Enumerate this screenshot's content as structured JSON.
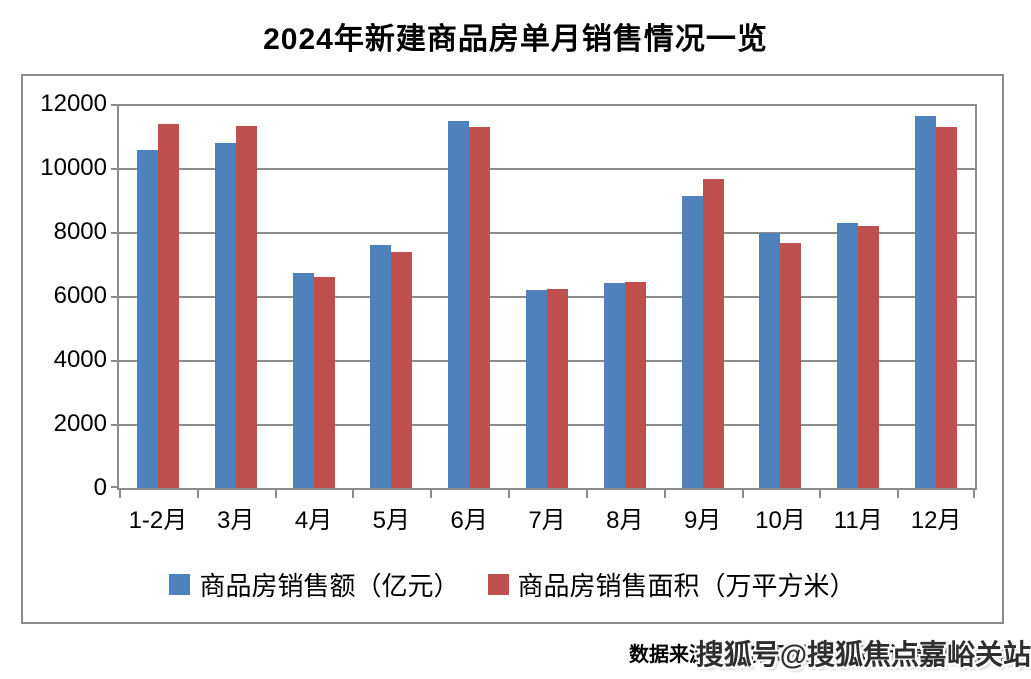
{
  "title": "2024年新建商品房单月销售情况一览",
  "footer": {
    "source": "数据来源：中房网根据国家统计局数据整理",
    "watermark": "搜狐号@搜狐焦点嘉峪关站"
  },
  "chart_data": {
    "type": "bar",
    "title": "2024年新建商品房单月销售情况一览",
    "categories": [
      "1-2月",
      "3月",
      "4月",
      "5月",
      "6月",
      "7月",
      "8月",
      "9月",
      "10月",
      "11月",
      "12月"
    ],
    "series": [
      {
        "name": "商品房销售额（亿元）",
        "color": "#4F81BD",
        "values": [
          10566,
          10789,
          6712,
          7598,
          11468,
          6197,
          6402,
          9137,
          7975,
          8270,
          11625
        ]
      },
      {
        "name": "商品房销售面积（万平方米）",
        "color": "#C0504D",
        "values": [
          11369,
          11299,
          6584,
          7390,
          11274,
          6233,
          6449,
          9651,
          7645,
          8188,
          11267
        ]
      }
    ],
    "xlabel": "",
    "ylabel": "",
    "ylim": [
      0,
      12000
    ],
    "yticks": [
      0,
      2000,
      4000,
      6000,
      8000,
      10000,
      12000
    ],
    "grid": true,
    "gridcolor": "#8C8C8C",
    "legend_position": "bottom"
  }
}
